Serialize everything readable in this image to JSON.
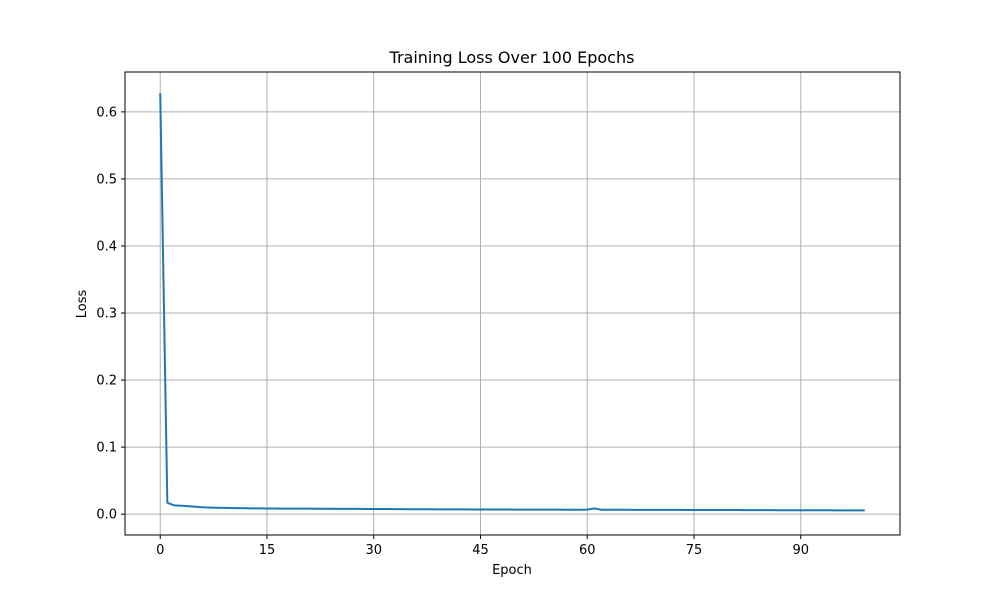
{
  "chart_data": {
    "type": "line",
    "title": "Training Loss Over 100 Epochs",
    "xlabel": "Epoch",
    "ylabel": "Loss",
    "xlim": [
      -4.95,
      103.95
    ],
    "ylim": [
      -0.0311,
      0.6595
    ],
    "xticks": [
      0,
      15,
      30,
      45,
      60,
      75,
      90
    ],
    "yticks": [
      0.0,
      0.1,
      0.2,
      0.3,
      0.4,
      0.5,
      0.6
    ],
    "ytick_labels": [
      "0.0",
      "0.1",
      "0.2",
      "0.3",
      "0.4",
      "0.5",
      "0.6"
    ],
    "grid": true,
    "series": [
      {
        "color": "#1f77b4",
        "x": [
          0,
          1,
          2,
          3,
          4,
          5,
          6,
          7,
          8,
          9,
          10,
          11,
          12,
          13,
          14,
          15,
          16,
          17,
          18,
          19,
          20,
          21,
          22,
          23,
          24,
          25,
          26,
          27,
          28,
          29,
          30,
          31,
          32,
          33,
          34,
          35,
          36,
          37,
          38,
          39,
          40,
          41,
          42,
          43,
          44,
          45,
          46,
          47,
          48,
          49,
          50,
          51,
          52,
          53,
          54,
          55,
          56,
          57,
          58,
          59,
          60,
          61,
          62,
          63,
          64,
          65,
          66,
          67,
          68,
          69,
          70,
          71,
          72,
          73,
          74,
          75,
          76,
          77,
          78,
          79,
          80,
          81,
          82,
          83,
          84,
          85,
          86,
          87,
          88,
          89,
          90,
          91,
          92,
          93,
          94,
          95,
          96,
          97,
          98,
          99
        ],
        "values": [
          0.628,
          0.017,
          0.013,
          0.0125,
          0.0118,
          0.011,
          0.0102,
          0.0098,
          0.0095,
          0.0093,
          0.0091,
          0.009,
          0.0088,
          0.0087,
          0.0086,
          0.0085,
          0.0084,
          0.0083,
          0.0083,
          0.0082,
          0.0082,
          0.0083,
          0.0081,
          0.008,
          0.008,
          0.0079,
          0.0079,
          0.0079,
          0.0078,
          0.0077,
          0.0077,
          0.0076,
          0.0076,
          0.0075,
          0.0075,
          0.0074,
          0.0074,
          0.0073,
          0.0073,
          0.0072,
          0.0072,
          0.0071,
          0.0071,
          0.0071,
          0.007,
          0.007,
          0.007,
          0.0069,
          0.0069,
          0.0069,
          0.0068,
          0.0068,
          0.0068,
          0.0068,
          0.0067,
          0.0067,
          0.0067,
          0.0066,
          0.0066,
          0.0066,
          0.0067,
          0.0085,
          0.0066,
          0.0065,
          0.0065,
          0.0065,
          0.0065,
          0.0064,
          0.0064,
          0.0064,
          0.0063,
          0.0063,
          0.0063,
          0.0063,
          0.0062,
          0.0062,
          0.0062,
          0.0062,
          0.0061,
          0.0061,
          0.0061,
          0.0061,
          0.006,
          0.006,
          0.006,
          0.006,
          0.006,
          0.0059,
          0.0059,
          0.0059,
          0.0059,
          0.0058,
          0.0058,
          0.0058,
          0.0058,
          0.0057,
          0.0057,
          0.0057,
          0.0057,
          0.0056
        ]
      }
    ]
  }
}
